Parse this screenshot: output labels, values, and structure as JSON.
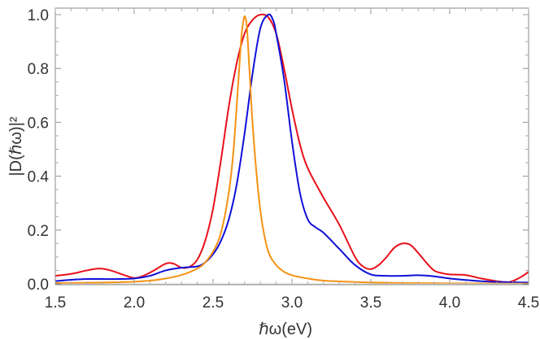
{
  "chart_data": {
    "type": "line",
    "xlabel": "ℏω(eV)",
    "ylabel": "|D(ℏω)|²",
    "xlim": [
      1.5,
      4.5
    ],
    "ylim": [
      0.0,
      1.0
    ],
    "x_ticks": [
      "1.5",
      "2.0",
      "2.5",
      "3.0",
      "3.5",
      "4.0",
      "4.5"
    ],
    "y_ticks": [
      "0.0",
      "0.2",
      "0.4",
      "0.6",
      "0.8",
      "1.0"
    ],
    "grid": false,
    "legend": "none",
    "series": [
      {
        "color": "#e8101a",
        "x": [
          1.5,
          1.6,
          1.7,
          1.78,
          1.85,
          1.95,
          2.0,
          2.05,
          2.12,
          2.2,
          2.25,
          2.3,
          2.35,
          2.4,
          2.45,
          2.5,
          2.55,
          2.6,
          2.65,
          2.7,
          2.75,
          2.8,
          2.85,
          2.9,
          2.95,
          3.0,
          3.05,
          3.1,
          3.2,
          3.3,
          3.4,
          3.45,
          3.5,
          3.55,
          3.6,
          3.65,
          3.7,
          3.75,
          3.8,
          3.85,
          3.9,
          3.95,
          4.0,
          4.1,
          4.2,
          4.3,
          4.38,
          4.45,
          4.5
        ],
        "y": [
          0.03,
          0.037,
          0.05,
          0.057,
          0.05,
          0.03,
          0.022,
          0.028,
          0.048,
          0.075,
          0.075,
          0.06,
          0.063,
          0.09,
          0.16,
          0.28,
          0.46,
          0.66,
          0.82,
          0.93,
          0.98,
          1.0,
          0.99,
          0.93,
          0.8,
          0.65,
          0.52,
          0.43,
          0.32,
          0.22,
          0.1,
          0.065,
          0.055,
          0.07,
          0.1,
          0.135,
          0.15,
          0.145,
          0.115,
          0.08,
          0.05,
          0.04,
          0.035,
          0.033,
          0.02,
          0.01,
          0.007,
          0.025,
          0.045
        ]
      },
      {
        "color": "#1010d8",
        "x": [
          1.5,
          1.6,
          1.7,
          1.8,
          1.9,
          2.0,
          2.1,
          2.2,
          2.3,
          2.4,
          2.45,
          2.5,
          2.55,
          2.6,
          2.65,
          2.7,
          2.75,
          2.8,
          2.85,
          2.88,
          2.9,
          2.95,
          3.0,
          3.05,
          3.1,
          3.15,
          3.2,
          3.3,
          3.4,
          3.5,
          3.6,
          3.7,
          3.8,
          3.9,
          4.0,
          4.2,
          4.4,
          4.5
        ],
        "y": [
          0.01,
          0.015,
          0.018,
          0.018,
          0.018,
          0.02,
          0.03,
          0.05,
          0.06,
          0.065,
          0.08,
          0.11,
          0.16,
          0.24,
          0.37,
          0.56,
          0.78,
          0.95,
          1.0,
          0.98,
          0.93,
          0.76,
          0.53,
          0.34,
          0.24,
          0.21,
          0.19,
          0.13,
          0.07,
          0.035,
          0.03,
          0.03,
          0.032,
          0.028,
          0.02,
          0.01,
          0.006,
          0.005
        ]
      },
      {
        "color": "#f59213",
        "x": [
          1.5,
          1.7,
          1.9,
          2.0,
          2.1,
          2.2,
          2.3,
          2.4,
          2.45,
          2.5,
          2.55,
          2.6,
          2.63,
          2.66,
          2.68,
          2.695,
          2.705,
          2.715,
          2.73,
          2.75,
          2.78,
          2.81,
          2.85,
          2.9,
          2.95,
          3.0,
          3.1,
          3.2,
          3.4,
          3.6,
          4.0,
          4.5
        ],
        "y": [
          0.003,
          0.004,
          0.006,
          0.008,
          0.012,
          0.02,
          0.033,
          0.057,
          0.08,
          0.12,
          0.19,
          0.34,
          0.5,
          0.75,
          0.92,
          0.985,
          0.99,
          0.95,
          0.8,
          0.6,
          0.38,
          0.23,
          0.12,
          0.07,
          0.045,
          0.032,
          0.02,
          0.012,
          0.007,
          0.004,
          0.002,
          0.001
        ]
      }
    ]
  }
}
